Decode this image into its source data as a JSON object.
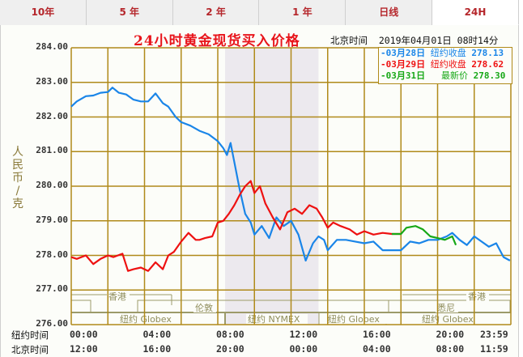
{
  "tabs": [
    {
      "label": "10年",
      "active": false
    },
    {
      "label": "5 年",
      "active": false
    },
    {
      "label": "2 年",
      "active": false
    },
    {
      "label": "1 年",
      "active": false
    },
    {
      "label": "日线",
      "active": false
    },
    {
      "label": "24H",
      "active": true
    }
  ],
  "header": {
    "title": "24小时黄金现货买入价格",
    "datetime_label": "北京时间",
    "datetime": "2019年04月01日 08时14分"
  },
  "legend": [
    {
      "date": "-03月28日",
      "kind": "纽约收盘",
      "value": "278.13",
      "color": "#1a85e8"
    },
    {
      "date": "-03月29日",
      "kind": "纽约收盘",
      "value": "278.62",
      "color": "#ee1111"
    },
    {
      "date": "-03月31日",
      "kind": "最新价",
      "value": "278.30",
      "color": "#17a817"
    }
  ],
  "y_axis_label": "人民币/克",
  "x_rows": [
    {
      "label": "纽约时间",
      "ticks": [
        "00:00",
        "04:00",
        "08:00",
        "12:00",
        "16:00",
        "20:00",
        "23:59"
      ]
    },
    {
      "label": "北京时间",
      "ticks": [
        "12:00",
        "16:00",
        "20:00",
        "00:00",
        "04:00",
        "08:00",
        "11:59"
      ]
    }
  ],
  "sessions": [
    {
      "name": "香港",
      "row": 1
    },
    {
      "name": "伦敦",
      "row": 2
    },
    {
      "name": "纽约 Globex",
      "row": 3
    },
    {
      "name": "纽约 NYMEX",
      "row": 3
    },
    {
      "name": "纽约 Globex",
      "row": 3
    },
    {
      "name": "香港",
      "row": 1
    },
    {
      "name": "悉尼",
      "row": 2
    },
    {
      "name": "纽约 Globex",
      "row": 3
    }
  ],
  "colors": {
    "grid": "#b08a1a",
    "shade": "#ece9ee",
    "session": "#9c9a6a"
  },
  "chart_data": {
    "type": "line",
    "title": "24小时黄金现货买入价格",
    "xlabel": "纽约时间 / 北京时间",
    "ylabel": "人民币/克",
    "ylim": [
      276,
      284
    ],
    "xlim": [
      0,
      24
    ],
    "y_ticks": [
      "284.00",
      "283.00",
      "282.00",
      "281.00",
      "280.00",
      "279.00",
      "278.00",
      "277.00",
      "276.00"
    ],
    "x_ticks_ny": [
      "00:00",
      "04:00",
      "08:00",
      "12:00",
      "16:00",
      "20:00",
      "23:59"
    ],
    "x_ticks_bj": [
      "12:00",
      "16:00",
      "20:00",
      "00:00",
      "04:00",
      "08:00",
      "11:59"
    ],
    "grid": true,
    "shaded_range_hours": [
      8.4,
      13.5
    ],
    "series": [
      {
        "name": "03月28日 纽约收盘 278.13",
        "color": "#1a85e8",
        "x": [
          0,
          0.3,
          0.8,
          1.2,
          1.6,
          2.0,
          2.25,
          2.6,
          3.0,
          3.4,
          3.8,
          4.2,
          4.6,
          5.0,
          5.3,
          5.7,
          6.0,
          6.5,
          7.0,
          7.5,
          8.0,
          8.3,
          8.5,
          8.7,
          8.9,
          9.2,
          9.5,
          9.8,
          10.0,
          10.4,
          10.8,
          11.2,
          11.6,
          12.0,
          12.4,
          12.8,
          13.2,
          13.5,
          13.8,
          14.0,
          14.5,
          15.0,
          15.5,
          16.0,
          16.5,
          17.0,
          17.5,
          18.0,
          18.5,
          19.0,
          19.5,
          20.0,
          20.5,
          20.8,
          21.2,
          21.6,
          22.0,
          22.4,
          22.8,
          23.2,
          23.6,
          23.95
        ],
        "y": [
          282.3,
          282.45,
          282.6,
          282.62,
          282.7,
          282.72,
          282.85,
          282.7,
          282.65,
          282.5,
          282.45,
          282.45,
          282.68,
          282.4,
          282.3,
          282.0,
          281.85,
          281.75,
          281.6,
          281.5,
          281.3,
          281.1,
          280.9,
          281.25,
          280.7,
          279.9,
          279.2,
          278.95,
          278.6,
          278.85,
          278.5,
          279.1,
          278.85,
          279.0,
          278.6,
          277.85,
          278.35,
          278.55,
          278.45,
          278.15,
          278.45,
          278.45,
          278.4,
          278.35,
          278.4,
          278.15,
          278.15,
          278.15,
          278.4,
          278.35,
          278.45,
          278.45,
          278.55,
          278.65,
          278.45,
          278.3,
          278.55,
          278.4,
          278.25,
          278.35,
          277.95,
          277.85
        ]
      },
      {
        "name": "03月29日 纽约收盘 278.62",
        "color": "#ee1111",
        "x": [
          0,
          0.3,
          0.8,
          1.2,
          1.6,
          2.0,
          2.3,
          2.8,
          3.1,
          3.4,
          3.8,
          4.2,
          4.6,
          5.0,
          5.3,
          5.6,
          6.0,
          6.4,
          6.8,
          7.0,
          7.3,
          7.7,
          8.0,
          8.3,
          8.6,
          8.9,
          9.2,
          9.5,
          9.8,
          10.0,
          10.3,
          10.6,
          11.0,
          11.4,
          11.8,
          12.2,
          12.6,
          13.0,
          13.4,
          13.7,
          14.0,
          14.3,
          14.7,
          15.2,
          15.6,
          16.0,
          16.5,
          17.0,
          17.5,
          18.0
        ],
        "y": [
          277.95,
          277.9,
          278.0,
          277.75,
          277.9,
          278.0,
          277.95,
          278.05,
          277.55,
          277.6,
          277.65,
          277.55,
          277.8,
          277.6,
          278.0,
          278.1,
          278.4,
          278.65,
          278.45,
          278.45,
          278.5,
          278.55,
          278.95,
          279.0,
          279.2,
          279.45,
          279.75,
          280.0,
          280.15,
          279.8,
          280.0,
          279.5,
          279.1,
          278.75,
          279.25,
          279.35,
          279.2,
          279.45,
          279.35,
          279.1,
          278.8,
          278.95,
          278.85,
          278.75,
          278.6,
          278.7,
          278.6,
          278.65,
          278.62,
          278.62
        ]
      },
      {
        "name": "03月31日 最新价 278.30",
        "color": "#17a817",
        "x": [
          17.5,
          18.0,
          18.3,
          18.8,
          19.2,
          19.6,
          20.0,
          20.4,
          20.8,
          21.0
        ],
        "y": [
          278.62,
          278.62,
          278.8,
          278.85,
          278.75,
          278.55,
          278.5,
          278.45,
          278.55,
          278.3
        ]
      }
    ]
  }
}
